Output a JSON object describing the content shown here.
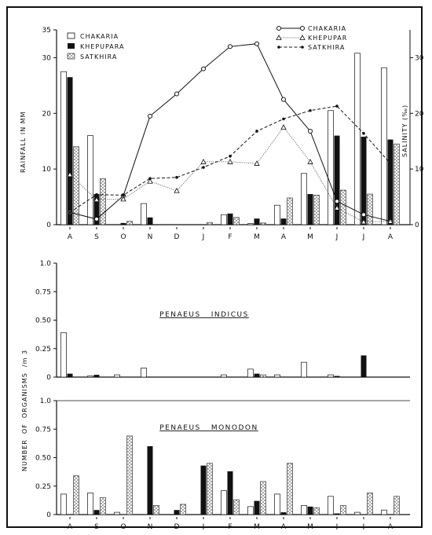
{
  "chart_data": [
    {
      "type": "bar",
      "categories": [
        "A",
        "S",
        "O",
        "N",
        "D",
        "J",
        "F",
        "M",
        "A",
        "M",
        "J",
        "J",
        "A"
      ],
      "ylabel": "RAINFALL IN MM",
      "y2label": "SALINITY (‰)",
      "ylim": [
        0,
        35
      ],
      "yticks": [
        0,
        10,
        20,
        30,
        35
      ],
      "y2ticks": [
        0,
        10,
        20,
        30
      ],
      "series": [
        {
          "name": "CHAKARIA",
          "values": [
            27.5,
            16.0,
            0.0,
            3.8,
            0.0,
            0.0,
            1.8,
            0.2,
            3.5,
            9.2,
            20.5,
            30.8,
            28.2
          ]
        },
        {
          "name": "KHEPUPARA",
          "values": [
            26.5,
            5.5,
            0.3,
            1.3,
            0.0,
            0.0,
            2.0,
            1.1,
            1.1,
            5.5,
            16.0,
            15.8,
            15.3
          ]
        },
        {
          "name": "SATKHIRA",
          "values": [
            14.0,
            8.3,
            0.6,
            0.0,
            0.0,
            0.4,
            1.3,
            0.3,
            4.8,
            5.3,
            6.2,
            5.5,
            14.5
          ]
        }
      ],
      "salinity_series": [
        {
          "name": "CHAKARIA",
          "values": [
            2.2,
            1.0,
            5.2,
            19.5,
            23.5,
            28.0,
            32.0,
            32.5,
            22.5,
            16.8,
            4.2,
            1.8,
            0.6
          ]
        },
        {
          "name": "KHEPUPAR",
          "values": [
            9.0,
            4.5,
            4.6,
            7.8,
            6.1,
            11.3,
            11.3,
            11.0,
            17.5,
            11.3,
            3.0,
            0.5,
            0.6
          ]
        },
        {
          "name": "SATKHIRA",
          "values": [
            2.2,
            5.4,
            5.3,
            8.3,
            8.5,
            10.3,
            12.3,
            16.8,
            19.0,
            20.5,
            21.3,
            16.4,
            11.0
          ]
        }
      ],
      "legend_bars": "top-left",
      "legend_lines": "top-right"
    },
    {
      "type": "bar",
      "title": "PENAEUS   INDICUS",
      "categories": [
        "A",
        "S",
        "O",
        "N",
        "D",
        "J",
        "F",
        "M",
        "A",
        "M",
        "J",
        "J",
        "A"
      ],
      "ylim": [
        0,
        1.0
      ],
      "yticks": [
        "0",
        "0.25",
        "0.50",
        "0.75",
        "1.0"
      ],
      "series": [
        {
          "name": "CHAKARIA",
          "values": [
            0.39,
            0.01,
            0.02,
            0.08,
            0.0,
            0.0,
            0.02,
            0.07,
            0.02,
            0.13,
            0.02,
            0.0,
            0.0
          ]
        },
        {
          "name": "KHEPUPARA",
          "values": [
            0.03,
            0.02,
            0.0,
            0.0,
            0.0,
            0.0,
            0.0,
            0.03,
            0.0,
            0.0,
            0.01,
            0.19,
            0.0
          ]
        },
        {
          "name": "SATKHIRA",
          "values": [
            0.0,
            0.0,
            0.0,
            0.0,
            0.0,
            0.0,
            0.0,
            0.02,
            0.0,
            0.0,
            0.0,
            0.0,
            0.0
          ]
        }
      ]
    },
    {
      "type": "bar",
      "title": "PENAEUS   MONODON",
      "ylabel": "NUMBER  OF  ORGANISMS  /m 3",
      "categories": [
        "A",
        "S",
        "O",
        "N",
        "D",
        "J",
        "F",
        "M",
        "A",
        "M",
        "J",
        "J",
        "A"
      ],
      "ylim": [
        0,
        1.0
      ],
      "yticks": [
        "0",
        "0.25",
        "0.50",
        "0.75",
        "1.0"
      ],
      "series": [
        {
          "name": "CHAKARIA",
          "values": [
            0.18,
            0.19,
            0.02,
            0.0,
            0.0,
            0.0,
            0.21,
            0.07,
            0.18,
            0.08,
            0.16,
            0.02,
            0.04
          ]
        },
        {
          "name": "KHEPUPARA",
          "values": [
            0.0,
            0.04,
            0.0,
            0.6,
            0.04,
            0.43,
            0.38,
            0.12,
            0.02,
            0.07,
            0.01,
            0.0,
            0.0
          ]
        },
        {
          "name": "SATKHIRA",
          "values": [
            0.34,
            0.15,
            0.69,
            0.08,
            0.09,
            0.45,
            0.13,
            0.29,
            0.45,
            0.06,
            0.08,
            0.19,
            0.16
          ]
        }
      ]
    }
  ]
}
